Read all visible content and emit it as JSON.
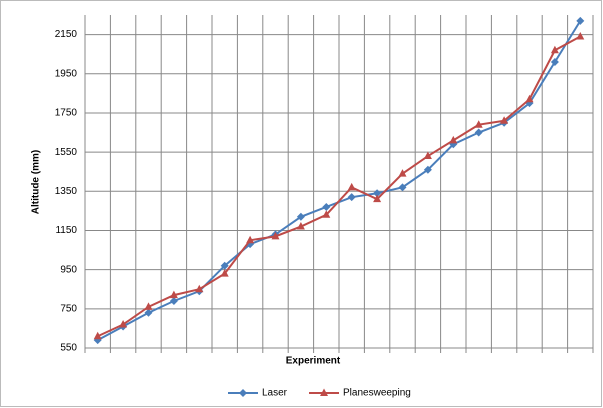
{
  "chart_data": {
    "type": "line",
    "x_label": "Experiment",
    "y_label": "Altitude (mm)",
    "categories": [
      null,
      null,
      null,
      null,
      null,
      null,
      null,
      null,
      null,
      null,
      null,
      null,
      null,
      null,
      null,
      null,
      null,
      null,
      null,
      null
    ],
    "series": [
      {
        "name": "Laser",
        "color": "#4a7ebb",
        "marker": "diamond",
        "values": [
          590,
          660,
          730,
          790,
          840,
          970,
          1080,
          1130,
          1220,
          1270,
          1320,
          1340,
          1370,
          1460,
          1590,
          1650,
          1700,
          1800,
          2010,
          2220
        ]
      },
      {
        "name": "Planesweeping",
        "color": "#be4b48",
        "marker": "triangle",
        "values": [
          610,
          670,
          760,
          820,
          850,
          930,
          1100,
          1120,
          1170,
          1230,
          1370,
          1310,
          1440,
          1530,
          1610,
          1690,
          1710,
          1820,
          2070,
          2140
        ]
      }
    ],
    "ylim": [
      550,
      2250
    ],
    "yticks": [
      550,
      750,
      950,
      1150,
      1350,
      1550,
      1750,
      1950,
      2150
    ],
    "grid": true,
    "legend": "bottom"
  }
}
